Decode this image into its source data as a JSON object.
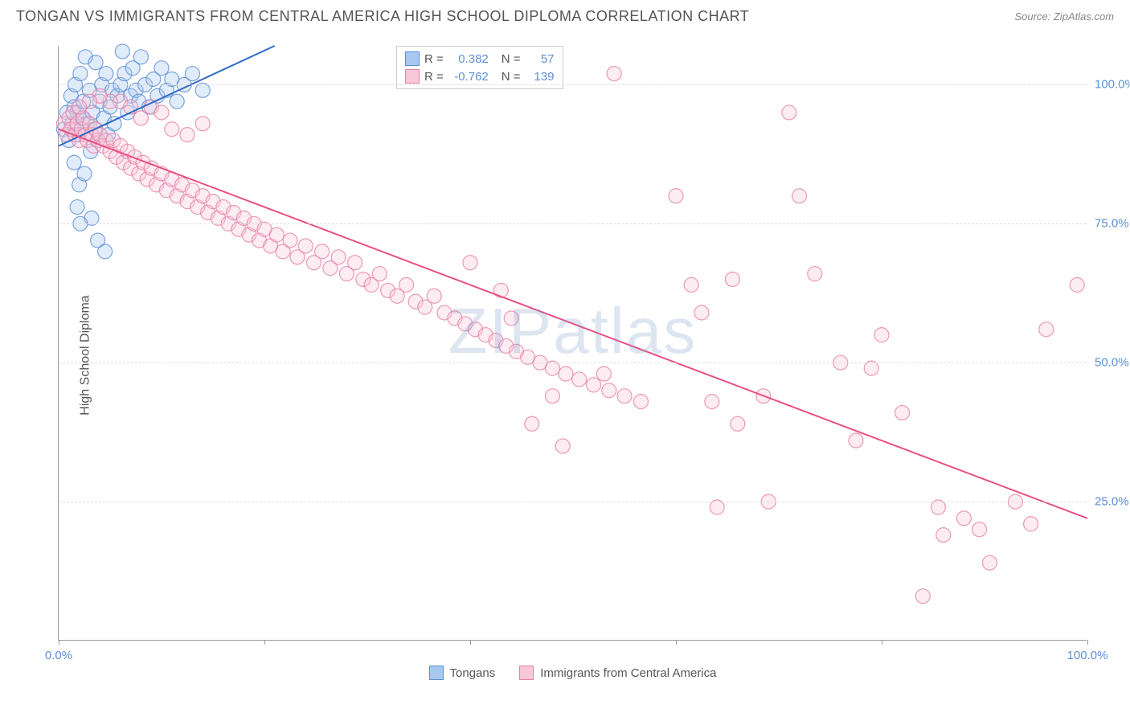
{
  "title": "TONGAN VS IMMIGRANTS FROM CENTRAL AMERICA HIGH SCHOOL DIPLOMA CORRELATION CHART",
  "source": "Source: ZipAtlas.com",
  "watermark": "ZIPatlas",
  "ylabel": "High School Diploma",
  "chart": {
    "type": "scatter",
    "xlim": [
      0,
      100
    ],
    "ylim": [
      0,
      107
    ],
    "background_color": "#ffffff",
    "grid_color": "#dddddd",
    "axis_color": "#999999",
    "tick_label_color": "#5b8fd6",
    "label_fontsize": 16,
    "tick_fontsize": 15,
    "yticks": [
      25,
      50,
      75,
      100
    ],
    "ytick_labels": [
      "25.0%",
      "50.0%",
      "75.0%",
      "100.0%"
    ],
    "xticks": [
      0,
      20,
      40,
      60,
      80,
      100
    ],
    "xtick_labels_shown": {
      "0": "0.0%",
      "100": "100.0%"
    },
    "marker_radius": 9,
    "marker_opacity": 0.35,
    "marker_stroke_opacity": 0.8,
    "line_width": 2,
    "series": [
      {
        "name": "Tongans",
        "color_fill": "#a8c8f0",
        "color_stroke": "#5b8fd6",
        "line_color": "#2e6bc4",
        "R": 0.382,
        "N": 57,
        "trend": {
          "x1": 0,
          "y1": 89,
          "x2": 21,
          "y2": 107
        },
        "points": [
          [
            0.5,
            92
          ],
          [
            0.8,
            95
          ],
          [
            1.0,
            90
          ],
          [
            1.2,
            98
          ],
          [
            1.3,
            93
          ],
          [
            1.5,
            96
          ],
          [
            1.6,
            100
          ],
          [
            1.8,
            95
          ],
          [
            2.0,
            91
          ],
          [
            2.1,
            102
          ],
          [
            2.3,
            94
          ],
          [
            2.4,
            97
          ],
          [
            2.6,
            105
          ],
          [
            2.8,
            93
          ],
          [
            3.0,
            99
          ],
          [
            3.1,
            88
          ],
          [
            3.3,
            95
          ],
          [
            3.5,
            92
          ],
          [
            3.6,
            104
          ],
          [
            3.8,
            90
          ],
          [
            4.0,
            97
          ],
          [
            4.2,
            100
          ],
          [
            4.4,
            94
          ],
          [
            4.6,
            102
          ],
          [
            4.8,
            91
          ],
          [
            5.0,
            96
          ],
          [
            5.2,
            99
          ],
          [
            5.4,
            93
          ],
          [
            5.7,
            98
          ],
          [
            6.0,
            100
          ],
          [
            6.2,
            106
          ],
          [
            6.4,
            102
          ],
          [
            6.7,
            95
          ],
          [
            7.0,
            98
          ],
          [
            7.2,
            103
          ],
          [
            7.5,
            99
          ],
          [
            7.8,
            97
          ],
          [
            8.0,
            105
          ],
          [
            8.4,
            100
          ],
          [
            8.8,
            96
          ],
          [
            9.2,
            101
          ],
          [
            9.6,
            98
          ],
          [
            10.0,
            103
          ],
          [
            10.5,
            99
          ],
          [
            11.0,
            101
          ],
          [
            11.5,
            97
          ],
          [
            12.2,
            100
          ],
          [
            13.0,
            102
          ],
          [
            14.0,
            99
          ],
          [
            1.5,
            86
          ],
          [
            2.0,
            82
          ],
          [
            2.5,
            84
          ],
          [
            1.8,
            78
          ],
          [
            3.2,
            76
          ],
          [
            3.8,
            72
          ],
          [
            2.1,
            75
          ],
          [
            4.5,
            70
          ]
        ]
      },
      {
        "name": "Immigrants from Central America",
        "color_fill": "#f8c8d8",
        "color_stroke": "#e77fa8",
        "line_color": "#e94f85",
        "R": -0.762,
        "N": 139,
        "trend": {
          "x1": 0,
          "y1": 92,
          "x2": 100,
          "y2": 22
        },
        "points": [
          [
            0.5,
            93
          ],
          [
            0.8,
            91
          ],
          [
            1.0,
            94
          ],
          [
            1.2,
            92
          ],
          [
            1.4,
            95
          ],
          [
            1.6,
            91
          ],
          [
            1.8,
            93
          ],
          [
            2.0,
            90
          ],
          [
            2.2,
            92
          ],
          [
            2.4,
            94
          ],
          [
            2.6,
            91
          ],
          [
            2.8,
            90
          ],
          [
            3.0,
            93
          ],
          [
            3.2,
            91
          ],
          [
            3.4,
            89
          ],
          [
            3.6,
            92
          ],
          [
            3.8,
            90
          ],
          [
            4.0,
            91
          ],
          [
            4.3,
            89
          ],
          [
            4.6,
            90
          ],
          [
            5.0,
            88
          ],
          [
            5.3,
            90
          ],
          [
            5.6,
            87
          ],
          [
            6.0,
            89
          ],
          [
            6.3,
            86
          ],
          [
            6.7,
            88
          ],
          [
            7.0,
            85
          ],
          [
            7.4,
            87
          ],
          [
            7.8,
            84
          ],
          [
            8.2,
            86
          ],
          [
            8.6,
            83
          ],
          [
            9.0,
            85
          ],
          [
            9.5,
            82
          ],
          [
            10.0,
            84
          ],
          [
            10.5,
            81
          ],
          [
            11.0,
            83
          ],
          [
            11.5,
            80
          ],
          [
            12.0,
            82
          ],
          [
            12.5,
            79
          ],
          [
            13.0,
            81
          ],
          [
            13.5,
            78
          ],
          [
            14.0,
            80
          ],
          [
            14.5,
            77
          ],
          [
            15.0,
            79
          ],
          [
            15.5,
            76
          ],
          [
            16.0,
            78
          ],
          [
            16.5,
            75
          ],
          [
            17.0,
            77
          ],
          [
            17.5,
            74
          ],
          [
            18.0,
            76
          ],
          [
            18.5,
            73
          ],
          [
            19.0,
            75
          ],
          [
            19.5,
            72
          ],
          [
            20.0,
            74
          ],
          [
            20.6,
            71
          ],
          [
            21.2,
            73
          ],
          [
            21.8,
            70
          ],
          [
            22.5,
            72
          ],
          [
            23.2,
            69
          ],
          [
            24.0,
            71
          ],
          [
            24.8,
            68
          ],
          [
            25.6,
            70
          ],
          [
            26.4,
            67
          ],
          [
            27.2,
            69
          ],
          [
            28.0,
            66
          ],
          [
            28.8,
            68
          ],
          [
            29.6,
            65
          ],
          [
            30.4,
            64
          ],
          [
            31.2,
            66
          ],
          [
            32.0,
            63
          ],
          [
            32.9,
            62
          ],
          [
            33.8,
            64
          ],
          [
            34.7,
            61
          ],
          [
            35.6,
            60
          ],
          [
            36.5,
            62
          ],
          [
            37.5,
            59
          ],
          [
            38.5,
            58
          ],
          [
            39.5,
            57
          ],
          [
            40.5,
            56
          ],
          [
            41.5,
            55
          ],
          [
            42.5,
            54
          ],
          [
            43.5,
            53
          ],
          [
            44.5,
            52
          ],
          [
            45.6,
            51
          ],
          [
            46.8,
            50
          ],
          [
            48.0,
            49
          ],
          [
            49.3,
            48
          ],
          [
            50.6,
            47
          ],
          [
            52.0,
            46
          ],
          [
            53.5,
            45
          ],
          [
            55.0,
            44
          ],
          [
            56.6,
            43
          ],
          [
            40.0,
            68
          ],
          [
            43.0,
            63
          ],
          [
            44.0,
            58
          ],
          [
            48.0,
            44
          ],
          [
            46.0,
            39
          ],
          [
            49.0,
            35
          ],
          [
            53.0,
            48
          ],
          [
            60.0,
            80
          ],
          [
            61.5,
            64
          ],
          [
            62.5,
            59
          ],
          [
            63.5,
            43
          ],
          [
            64.0,
            24
          ],
          [
            65.5,
            65
          ],
          [
            66.0,
            39
          ],
          [
            68.5,
            44
          ],
          [
            69.0,
            25
          ],
          [
            71.0,
            95
          ],
          [
            72.0,
            80
          ],
          [
            73.5,
            66
          ],
          [
            76.0,
            50
          ],
          [
            77.5,
            36
          ],
          [
            79.0,
            49
          ],
          [
            80.0,
            55
          ],
          [
            82.0,
            41
          ],
          [
            84.0,
            8
          ],
          [
            85.5,
            24
          ],
          [
            86.0,
            19
          ],
          [
            88.0,
            22
          ],
          [
            89.5,
            20
          ],
          [
            90.5,
            14
          ],
          [
            93.0,
            25
          ],
          [
            94.5,
            21
          ],
          [
            96.0,
            56
          ],
          [
            99.0,
            64
          ],
          [
            54.0,
            102
          ],
          [
            8.0,
            94
          ],
          [
            9.0,
            96
          ],
          [
            10.0,
            95
          ],
          [
            11.0,
            92
          ],
          [
            12.5,
            91
          ],
          [
            14.0,
            93
          ],
          [
            6.0,
            97
          ],
          [
            7.0,
            96
          ],
          [
            5.0,
            97
          ],
          [
            4.0,
            98
          ],
          [
            3.0,
            97
          ],
          [
            2.0,
            96
          ]
        ]
      }
    ]
  },
  "bottom_legend": [
    {
      "label": "Tongans",
      "fill": "#a8c8f0",
      "stroke": "#5b8fd6"
    },
    {
      "label": "Immigrants from Central America",
      "fill": "#f8c8d8",
      "stroke": "#e77fa8"
    }
  ]
}
